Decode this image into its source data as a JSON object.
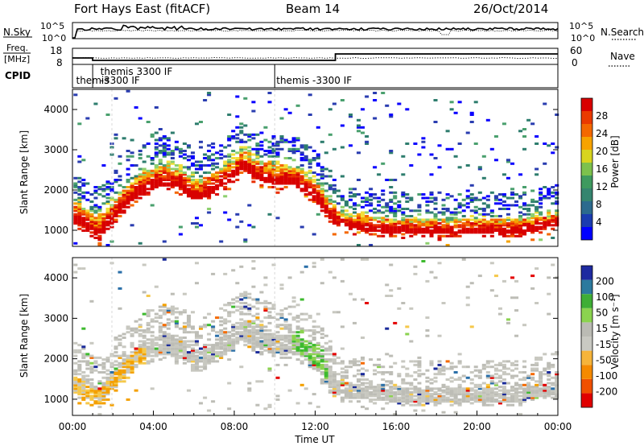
{
  "header": {
    "left": "Fort Hays East (fitACF)",
    "center": "Beam 14",
    "right": "26/Oct/2014"
  },
  "nsky_panel": {
    "label": "N.Sky",
    "left_ticks": [
      "10^5",
      "10^0"
    ],
    "right_ticks": [
      "10^5",
      "10^0"
    ],
    "right_label": "N.Search"
  },
  "freq_panel": {
    "label_line1": "Freq.",
    "label_line2": "[MHz]",
    "left_ticks": [
      "18",
      "8"
    ],
    "right_ticks": [
      "60",
      "0"
    ],
    "right_label": "Nave",
    "freq_steps": [
      {
        "t0": 0.0,
        "t1": 1.0,
        "mhz": 12.0
      },
      {
        "t0": 1.0,
        "t1": 13.0,
        "mhz": 10.5
      },
      {
        "t0": 13.0,
        "t1": 24.0,
        "mhz": 14.5
      }
    ]
  },
  "cpid_panel": {
    "label": "CPID",
    "segments": [
      {
        "t": 0.1,
        "text": "themis",
        "row": 2
      },
      {
        "t": 1.3,
        "text": "themis 3300 IF",
        "row": 1
      },
      {
        "t": 1.3,
        "text": "-3300 IF",
        "row": 2
      },
      {
        "t": 10.0,
        "text": "themis -3300 IF",
        "row": 2
      }
    ],
    "boundaries": [
      1.0,
      10.0
    ]
  },
  "colors": {
    "power": [
      "#0a00ff",
      "#2a3db0",
      "#2e7d6e",
      "#4aa06e",
      "#8dcf6e",
      "#f2df3a",
      "#f5a300",
      "#f46800",
      "#e82e00",
      "#d80000"
    ],
    "velocity": [
      "#e40000",
      "#f56a00",
      "#f4a000",
      "#f5c84a",
      "#c8c8c0",
      "#bdbdb6",
      "#8bd34f",
      "#3dba2e",
      "#2a6fa8",
      "#1a2a9a"
    ],
    "power_bar": [
      "#0000ff",
      "#1b3cb0",
      "#2c6a8e",
      "#35856f",
      "#3f9a5f",
      "#7dc14d",
      "#d8d41f",
      "#f7a300",
      "#f46800",
      "#ea3a00",
      "#d90000"
    ],
    "velocity_bar": [
      "#e00000",
      "#f05000",
      "#f58a00",
      "#f6b43a",
      "#c9c9c2",
      "#bbbbb4",
      "#8bd34f",
      "#3fae36",
      "#2c7a9e",
      "#1e2aa0"
    ]
  },
  "chart_data": [
    {
      "type": "heatmap",
      "quantity": "power",
      "ylabel": "Slant Range [km]",
      "ylim": [
        600,
        4500
      ],
      "xlim": [
        0,
        24
      ],
      "ytick_labels": [
        "1000",
        "2000",
        "3000",
        "4000"
      ],
      "ytick_values": [
        1000,
        2000,
        3000,
        4000
      ],
      "colorbar_label": "Power [dB]",
      "colorbar_ticks": [
        "4",
        "8",
        "12",
        "16",
        "20",
        "24",
        "28"
      ],
      "colorbar_tick_values": [
        4,
        8,
        12,
        16,
        20,
        24,
        28
      ],
      "colorbar_range": [
        0,
        32
      ],
      "echo_band": {
        "t": [
          0,
          0.5,
          1.0,
          1.3,
          1.8,
          2.5,
          3.5,
          4.5,
          5.5,
          6.0,
          7.0,
          8.0,
          8.3,
          9.0,
          10.0,
          11.0,
          12.0,
          12.5,
          13.0,
          14.0,
          15.0,
          16.0,
          17.0,
          18.0,
          19.0,
          20.0,
          21.0,
          22.0,
          23.0,
          24.0
        ],
        "center_km": [
          1400,
          1250,
          1050,
          1050,
          1350,
          1750,
          2150,
          2300,
          2150,
          1900,
          2150,
          2500,
          2700,
          2450,
          2300,
          2300,
          1900,
          1550,
          1250,
          1150,
          1100,
          1050,
          1050,
          1050,
          1050,
          1050,
          1050,
          1050,
          1150,
          1250
        ]
      }
    },
    {
      "type": "heatmap",
      "quantity": "velocity",
      "ylabel": "Slant Range [km]",
      "ylim": [
        600,
        4500
      ],
      "xlim": [
        0,
        24
      ],
      "ytick_labels": [
        "1000",
        "2000",
        "3000",
        "4000"
      ],
      "ytick_values": [
        1000,
        2000,
        3000,
        4000
      ],
      "colorbar_label": "Velocity [m s⁻¹]",
      "colorbar_ticks": [
        "-200",
        "-100",
        "-50",
        "-15",
        "15",
        "50",
        "100",
        "200"
      ],
      "colorbar_tick_values": [
        -200,
        -100,
        -50,
        -15,
        15,
        50,
        100,
        200
      ],
      "xlabel": "Time UT",
      "xtick_labels": [
        "00:00",
        "04:00",
        "08:00",
        "12:00",
        "16:00",
        "20:00",
        "00:00"
      ],
      "xtick_values": [
        0,
        4,
        8,
        12,
        16,
        20,
        24
      ]
    }
  ]
}
